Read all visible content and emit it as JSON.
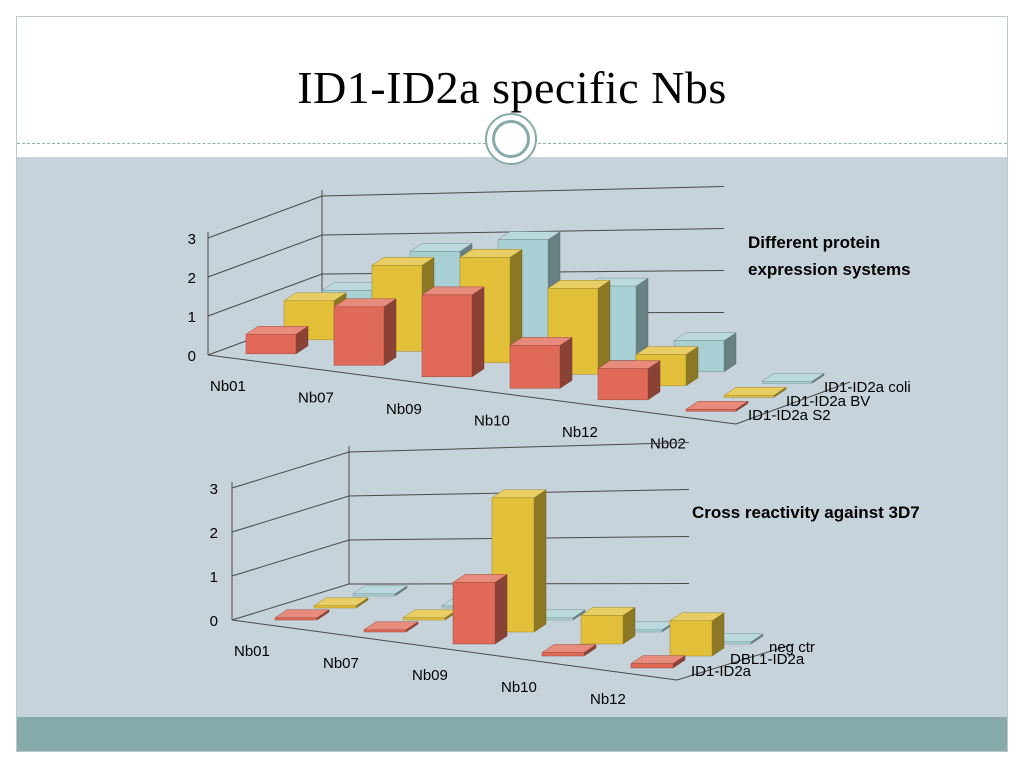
{
  "slide": {
    "title": "ID1-ID2a specific Nbs"
  },
  "colors": {
    "red": "#e06a57",
    "yellow": "#e2c03a",
    "teal": "#a8cfd3"
  },
  "chart_data": [
    {
      "type": "bar",
      "subtype": "3d-clustered",
      "title": "Different protein expression systems",
      "categories": [
        "Nb01",
        "Nb07",
        "Nb09",
        "Nb10",
        "Nb12",
        "Nb02"
      ],
      "series": [
        {
          "name": "ID1-ID2a S2",
          "color": "#e06a57",
          "values": [
            0.5,
            1.5,
            2.1,
            1.1,
            0.8,
            0.05
          ]
        },
        {
          "name": "ID1-ID2a BV",
          "color": "#e2c03a",
          "values": [
            1.0,
            2.2,
            2.7,
            2.2,
            0.8,
            0.05
          ]
        },
        {
          "name": "ID1-ID2a coli",
          "color": "#a8cfd3",
          "values": [
            0.9,
            2.2,
            2.8,
            1.9,
            0.8,
            0.05
          ]
        }
      ],
      "yticks": [
        "0",
        "1",
        "2",
        "3"
      ],
      "ylim": [
        0,
        3
      ]
    },
    {
      "type": "bar",
      "subtype": "3d-clustered",
      "title": "Cross reactivity against 3D7",
      "categories": [
        "Nb01",
        "Nb07",
        "Nb09",
        "Nb10",
        "Nb12"
      ],
      "series": [
        {
          "name": "ID1-ID2a",
          "color": "#e06a57",
          "values": [
            0.05,
            0.05,
            1.4,
            0.08,
            0.1
          ]
        },
        {
          "name": "DBL1-ID2a",
          "color": "#e2c03a",
          "values": [
            0.05,
            0.05,
            3.05,
            0.65,
            0.8
          ]
        },
        {
          "name": "neg ctr",
          "color": "#a8cfd3",
          "values": [
            0.05,
            0.05,
            0.05,
            0.05,
            0.05
          ]
        }
      ],
      "yticks": [
        "0",
        "1",
        "2",
        "3"
      ],
      "ylim": [
        0,
        3
      ]
    }
  ]
}
